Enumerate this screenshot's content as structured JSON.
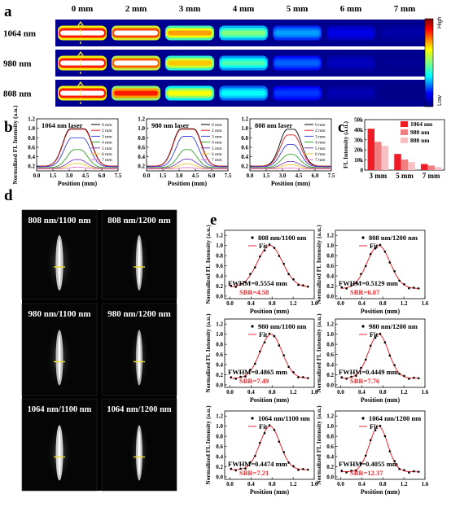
{
  "panels": {
    "a": {
      "label": "a",
      "distances": [
        "0 mm",
        "2 mm",
        "3 mm",
        "4 mm",
        "5 mm",
        "6 mm",
        "7 mm"
      ],
      "wavelengths": [
        "1064 nm",
        "980 nm",
        "808 nm"
      ],
      "colorbar": {
        "high": "High",
        "low": "Low"
      },
      "brightness": [
        [
          1.0,
          0.95,
          0.72,
          0.5,
          0.28,
          0.1,
          0.04
        ],
        [
          1.0,
          0.92,
          0.68,
          0.45,
          0.22,
          0.06,
          0.02
        ],
        [
          1.0,
          0.85,
          0.62,
          0.38,
          0.18,
          0.05,
          0.01
        ]
      ]
    },
    "b": {
      "label": "b"
    },
    "c": {
      "label": "c"
    },
    "d": {
      "label": "d",
      "images": [
        {
          "title": "808 nm/1100 nm",
          "width": 0.55,
          "intensity": 0.9
        },
        {
          "title": "808 nm/1200 nm",
          "width": 0.35,
          "intensity": 0.85
        },
        {
          "title": "980 nm/1100 nm",
          "width": 0.5,
          "intensity": 0.85
        },
        {
          "title": "980 nm/1200 nm",
          "width": 0.33,
          "intensity": 0.8
        },
        {
          "title": "1064 nm/1100 nm",
          "width": 0.5,
          "intensity": 0.95
        },
        {
          "title": "1064 nm/1200 nm",
          "width": 0.33,
          "intensity": 0.85
        }
      ]
    },
    "e": {
      "label": "e"
    }
  },
  "colors": {
    "c_1064": "#ee1c25",
    "c_980": "#f07d80",
    "c_808": "#f9c0c3",
    "fit": "#e8262b",
    "curves": [
      "#000000",
      "#e41a1c",
      "#3b3bd9",
      "#2ca02c",
      "#7b3fb5",
      "#e6c72b",
      "#e377c2",
      "#17becf"
    ],
    "crosshair": "#f2e02e"
  },
  "chart_data": [
    {
      "id": "b1",
      "type": "line",
      "title": "1064 nm laser",
      "xlabel": "Position (mm)",
      "ylabel": "Normalized FL Intensity (a.u.)",
      "xlim": [
        0,
        7.5
      ],
      "ylim": [
        0.1,
        1.2
      ],
      "xticks": [
        "0.0",
        "1.5",
        "3.0",
        "4.5",
        "6.0",
        "7.5"
      ],
      "yticks": [
        "0.2",
        "0.4",
        "0.6",
        "0.8",
        "1.0",
        "1.2"
      ],
      "series": [
        {
          "name": "0 mm",
          "peak": 0.99,
          "base": 0.2,
          "flat": 1.3
        },
        {
          "name": "2 mm",
          "peak": 0.98,
          "base": 0.2,
          "flat": 1.25
        },
        {
          "name": "3 mm",
          "peak": 0.8,
          "base": 0.19,
          "flat": 1.0
        },
        {
          "name": "4 mm",
          "peak": 0.55,
          "base": 0.17,
          "flat": 0.5
        },
        {
          "name": "5 mm",
          "peak": 0.34,
          "base": 0.16,
          "flat": 0.3
        },
        {
          "name": "6 mm",
          "peak": 0.26,
          "base": 0.15,
          "flat": 0.2
        },
        {
          "name": "7 mm",
          "peak": 0.18,
          "base": 0.14,
          "flat": 0.1
        }
      ]
    },
    {
      "id": "b2",
      "type": "line",
      "title": "980 nm laser",
      "xlabel": "Position (mm)",
      "ylabel": "",
      "xlim": [
        0,
        7.5
      ],
      "ylim": [
        0.1,
        1.2
      ],
      "xticks": [
        "0.0",
        "1.5",
        "3.0",
        "4.5",
        "6.0",
        "7.5"
      ],
      "yticks": [
        "0.2",
        "0.4",
        "0.6",
        "0.8",
        "1.0",
        "1.2"
      ],
      "series": [
        {
          "name": "0 mm",
          "peak": 0.99,
          "base": 0.2,
          "flat": 1.2
        },
        {
          "name": "2 mm",
          "peak": 0.98,
          "base": 0.2,
          "flat": 1.15
        },
        {
          "name": "3 mm",
          "peak": 0.83,
          "base": 0.19,
          "flat": 0.7
        },
        {
          "name": "4 mm",
          "peak": 0.55,
          "base": 0.17,
          "flat": 0.35
        },
        {
          "name": "5 mm",
          "peak": 0.35,
          "base": 0.16,
          "flat": 0.25
        },
        {
          "name": "6 mm",
          "peak": 0.25,
          "base": 0.15,
          "flat": 0.15
        },
        {
          "name": "7 mm",
          "peak": 0.17,
          "base": 0.14,
          "flat": 0.1
        }
      ]
    },
    {
      "id": "b3",
      "type": "line",
      "title": "808 nm laser",
      "xlabel": "Position (mm)",
      "ylabel": "",
      "xlim": [
        0,
        7.5
      ],
      "ylim": [
        0.1,
        1.2
      ],
      "xticks": [
        "0.0",
        "1.5",
        "3.0",
        "4.5",
        "6.0",
        "7.5"
      ],
      "yticks": [
        "0.2",
        "0.4",
        "0.6",
        "0.8",
        "1.0",
        "1.2"
      ],
      "series": [
        {
          "name": "0 mm",
          "peak": 0.98,
          "base": 0.2,
          "flat": 0.6
        },
        {
          "name": "2 mm",
          "peak": 0.86,
          "base": 0.2,
          "flat": 0.5
        },
        {
          "name": "3 mm",
          "peak": 0.66,
          "base": 0.19,
          "flat": 0.4
        },
        {
          "name": "4 mm",
          "peak": 0.45,
          "base": 0.17,
          "flat": 0.3
        },
        {
          "name": "5 mm",
          "peak": 0.3,
          "base": 0.16,
          "flat": 0.2
        },
        {
          "name": "6 mm",
          "peak": 0.23,
          "base": 0.15,
          "flat": 0.15
        },
        {
          "name": "7 mm",
          "peak": 0.16,
          "base": 0.14,
          "flat": 0.1
        }
      ]
    },
    {
      "id": "c",
      "type": "bar",
      "ylabel": "FL Intensity (a.u.)",
      "ylim": [
        0,
        50000
      ],
      "yticks": [
        "0",
        "10k",
        "20k",
        "30k",
        "40k",
        "50k"
      ],
      "categories": [
        "3 mm",
        "5 mm",
        "7 mm"
      ],
      "series": [
        {
          "name": "1064 nm",
          "values": [
            41000,
            16000,
            6000
          ]
        },
        {
          "name": "980 nm",
          "values": [
            28000,
            10500,
            4500
          ]
        },
        {
          "name": "808 nm",
          "values": [
            24000,
            8000,
            3000
          ]
        }
      ]
    },
    {
      "id": "e",
      "type": "scatter",
      "xlabel": "Position (mm)",
      "ylabel": "Normalized FL Intensity (a.u.)",
      "xlim": [
        -0.1,
        1.6
      ],
      "ylim": [
        -0.05,
        1.3
      ],
      "xticks": [
        "0.0",
        "0.4",
        "0.8",
        "1.2",
        "1.6"
      ],
      "yticks": [
        "0.0",
        "0.2",
        "0.4",
        "0.6",
        "0.8",
        "1.0",
        "1.2"
      ],
      "legend": [
        "Fit"
      ],
      "plots": [
        {
          "name": "808 nm/1100 nm",
          "fwhm": "FWHM=0.5554 mm",
          "sbr": "SBR=4.58",
          "center": 0.76,
          "sigma": 0.236,
          "base": 0.18
        },
        {
          "name": "808 nm/1200 nm",
          "fwhm": "FWHM=0.5129 mm",
          "sbr": "SBR=6.87",
          "center": 0.72,
          "sigma": 0.218,
          "base": 0.15
        },
        {
          "name": "980 nm/1100 nm",
          "fwhm": "FWHM=0.4865 mm",
          "sbr": "SBR=7.49",
          "center": 0.78,
          "sigma": 0.207,
          "base": 0.13
        },
        {
          "name": "980 nm/1200 nm",
          "fwhm": "FWHM=0.4449 mm",
          "sbr": "SBR=7.76",
          "center": 0.72,
          "sigma": 0.189,
          "base": 0.13
        },
        {
          "name": "1064 nm/1100 nm",
          "fwhm": "FWHM=0.4474 mm",
          "sbr": "SBR=7.21",
          "center": 0.76,
          "sigma": 0.19,
          "base": 0.14
        },
        {
          "name": "1064 nm/1200 nm",
          "fwhm": "FWHM=0.4055 mm",
          "sbr": "SBR=12.37",
          "center": 0.72,
          "sigma": 0.172,
          "base": 0.1
        }
      ]
    }
  ]
}
